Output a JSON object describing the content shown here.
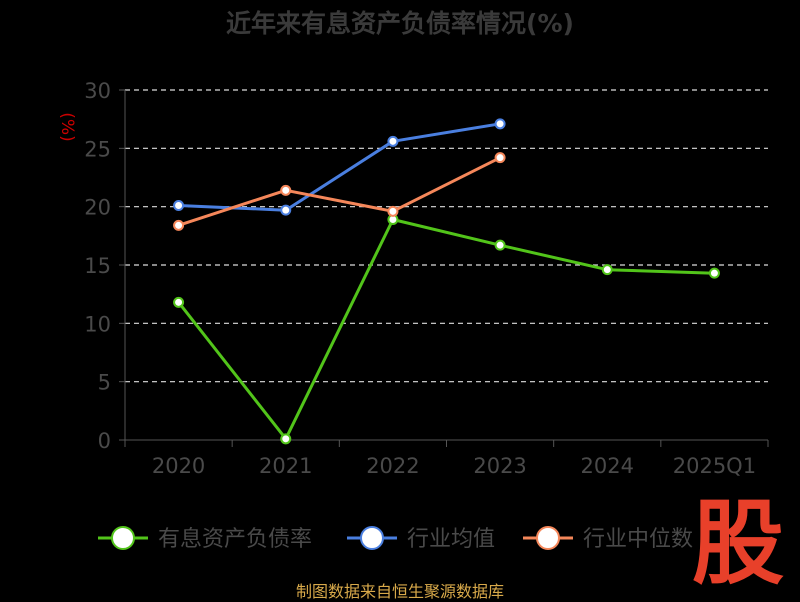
{
  "colors": {
    "background": "#000000",
    "title": "#3a3a3a",
    "axis": "#555555",
    "tick_text": "#4a4a4a",
    "ylabel": "#cc0000",
    "source": "#d8a94a",
    "logo": "#e8402a"
  },
  "source_text": "制图数据来自恒生聚源数据库",
  "logo_text": "股",
  "chart_data": {
    "type": "line",
    "title": "近年来有息资产负债率情况(%)",
    "xlabel": "",
    "ylabel": "(%)",
    "categories": [
      "2020",
      "2021",
      "2022",
      "2023",
      "2024",
      "2025Q1"
    ],
    "ylim": [
      0,
      30
    ],
    "yticks": [
      0,
      5,
      10,
      15,
      20,
      25,
      30
    ],
    "grid": true,
    "legend_position": "bottom",
    "series": [
      {
        "name": "有息资产负债率",
        "color": "#52c41a",
        "values": [
          11.8,
          0.1,
          18.9,
          16.7,
          14.6,
          14.3
        ]
      },
      {
        "name": "行业均值",
        "color": "#4a7fe0",
        "values": [
          20.1,
          19.7,
          25.6,
          27.1,
          null,
          null
        ]
      },
      {
        "name": "行业中位数",
        "color": "#f5875a",
        "values": [
          18.4,
          21.4,
          19.6,
          24.2,
          null,
          null
        ]
      }
    ]
  }
}
